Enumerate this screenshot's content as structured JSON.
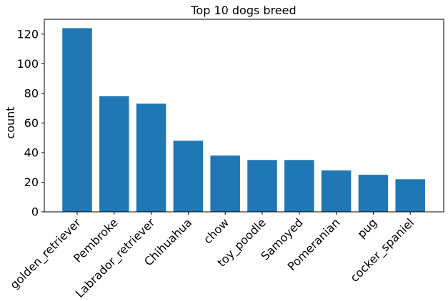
{
  "chart_data": {
    "type": "bar",
    "title": "Top 10 dogs breed",
    "xlabel": "",
    "ylabel": "count",
    "categories": [
      "golden_retriever",
      "Pembroke",
      "Labrador_retriever",
      "Chihuahua",
      "chow",
      "toy_poodle",
      "Samoyed",
      "Pomeranian",
      "pug",
      "cocker_spaniel"
    ],
    "values": [
      124,
      78,
      73,
      48,
      38,
      35,
      35,
      28,
      25,
      22
    ],
    "ylim": [
      0,
      130
    ],
    "yticks": [
      0,
      20,
      40,
      60,
      80,
      100,
      120
    ],
    "bar_color": "#1f77b4",
    "grid": false,
    "legend": "none"
  }
}
